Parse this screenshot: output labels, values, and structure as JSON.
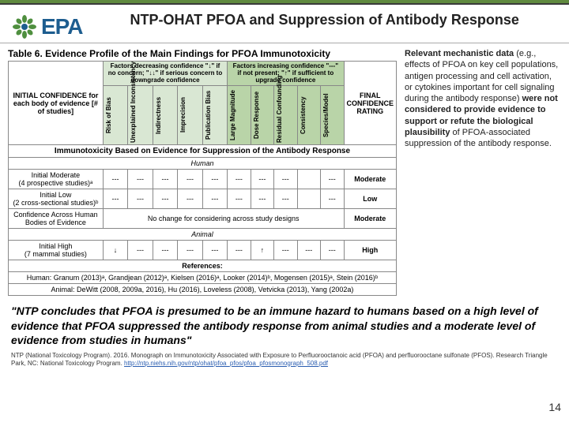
{
  "logo": {
    "text": "EPA"
  },
  "title": "NTP-OHAT PFOA and Suppression of Antibody Response",
  "tableCaption": "Table 6. Evidence Profile of the Main Findings for PFOA Immunotoxicity",
  "decHdr": "Factors decreasing confidence\n\"↓\" if no concern; \"↓↓\" if serious concern to downgrade confidence",
  "incHdr": "Factors increasing confidence\n\"---\" if not present; \"↑\" if sufficient to upgrade confidence",
  "colInit": "INITIAL CONFIDENCE for each body of evidence [# of studies]",
  "colFinal": "FINAL CONFIDENCE RATING",
  "rotCols": [
    "Risk of Bias",
    "Unexplained Inconsistency",
    "Indirectness",
    "Imprecision",
    "Publication Bias",
    "Large Magnitude",
    "Dose Response",
    "Residual Confounding",
    "Consistency",
    "Species/Model"
  ],
  "sectTitle": "Immunotoxicity Based on Evidence for Suppression of the Antibody Response",
  "rows": [
    {
      "group": "Human",
      "type": "sub"
    },
    {
      "label": "Initial Moderate\n(4 prospective studies)ᵃ",
      "cells": [
        "---",
        "---",
        "---",
        "---",
        "---",
        "---",
        "---",
        "---",
        "",
        "---"
      ],
      "final": "Moderate"
    },
    {
      "label": "Initial Low\n(2 cross-sectional studies)ᵇ",
      "cells": [
        "---",
        "---",
        "---",
        "---",
        "---",
        "---",
        "---",
        "---",
        "",
        "---"
      ],
      "final": "Low"
    },
    {
      "label": "Confidence Across Human Bodies of Evidence",
      "span": "No change for considering across study designs",
      "final": "Moderate"
    },
    {
      "group": "Animal",
      "type": "sub"
    },
    {
      "label": "Initial High\n(7 mammal studies)",
      "cells": [
        "↓",
        "---",
        "---",
        "---",
        "---",
        "---",
        "↑",
        "---",
        "---",
        "---"
      ],
      "final": "High"
    }
  ],
  "refs": "References:",
  "refHuman": "Human: Granum (2013)ᵃ, Grandjean (2012)ᵃ, Kielsen (2016)ᵃ, Looker (2014)ᵇ, Mogensen (2015)ᵃ, Stein (2016)ᵇ",
  "refAnimal": "Animal: DeWitt (2008, 2009a, 2016), Hu (2016), Loveless (2008), Vetvicka (2013), Yang (2002a)",
  "sideText": {
    "p1a": "Relevant mechanistic data ",
    "p1b": "(e.g., effects of PFOA on key cell populations, antigen processing and cell activation, or cytokines important for cell signaling during the antibody response) ",
    "p1c": "were not considered to provide evidence to support or refute the biological plausibility ",
    "p1d": "of PFOA-associated suppression of the antibody response."
  },
  "quote": "\"NTP concludes that PFOA is presumed to be an immune hazard to humans based on a high level of evidence that PFOA suppressed the antibody response from animal studies and a moderate level of evidence from studies in humans\"",
  "citation": "NTP (National Toxicology Program). 2016. Monograph on Immunotoxicity Associated with Exposure to Perfluorooctanoic acid (PFOA) and perfluorooctane sulfonate (PFOS). Research Triangle Park, NC: National Toxicology Program. ",
  "citationUrl": "http://ntp.niehs.nih.gov/ntp/ohat/pfoa_pfos/pfoa_pfosmonograph_508.pdf",
  "pageNum": "14",
  "colors": {
    "green": "#608a3f",
    "lightGreen": "#b9d4a8",
    "palerGreen": "#d9e7d3",
    "blue": "#1d5d8f"
  }
}
